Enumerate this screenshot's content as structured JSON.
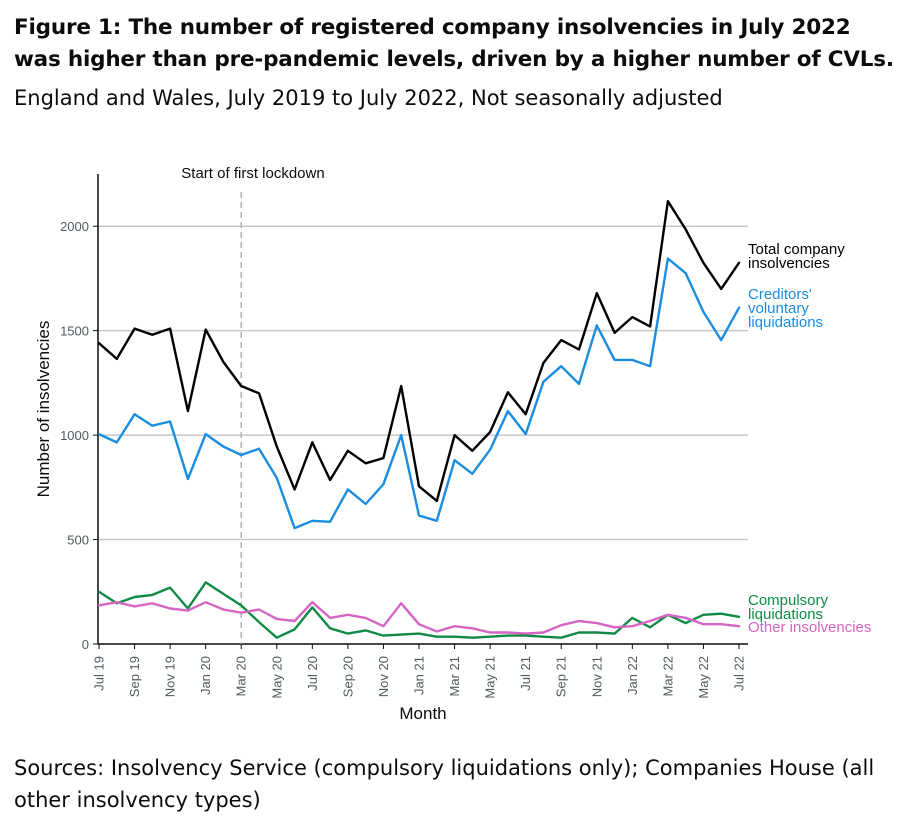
{
  "figure": {
    "title": "Figure 1: The number of registered company insolvencies in July 2022 was higher than pre-pandemic levels, driven by a higher number of CVLs.",
    "subtitle": "England and Wales, July 2019 to July 2022, Not seasonally adjusted",
    "source": "Sources: Insolvency Service (compulsory liquidations only); Companies House (all other insolvency types)"
  },
  "chart_data": {
    "type": "line",
    "xlabel": "Month",
    "ylabel": "Number of insolvencies",
    "ylim": [
      0,
      2250
    ],
    "yticks": [
      0,
      500,
      1000,
      1500,
      2000
    ],
    "grid": "horizontal",
    "x": [
      "Jul 19",
      "Aug 19",
      "Sep 19",
      "Oct 19",
      "Nov 19",
      "Dec 19",
      "Jan 20",
      "Feb 20",
      "Mar 20",
      "Apr 20",
      "May 20",
      "Jun 20",
      "Jul 20",
      "Aug 20",
      "Sep 20",
      "Oct 20",
      "Nov 20",
      "Dec 20",
      "Jan 21",
      "Feb 21",
      "Mar 21",
      "Apr 21",
      "May 21",
      "Jun 21",
      "Jul 21",
      "Aug 21",
      "Sep 21",
      "Oct 21",
      "Nov 21",
      "Dec 21",
      "Jan 22",
      "Feb 22",
      "Mar 22",
      "Apr 22",
      "May 22",
      "Jun 22",
      "Jul 22"
    ],
    "xtick_labels": [
      "Jul 19",
      "Sep 19",
      "Nov 19",
      "Jan 20",
      "Mar 20",
      "May 20",
      "Jul 20",
      "Sep 20",
      "Nov 20",
      "Jan 21",
      "Mar 21",
      "May 21",
      "Jul 21",
      "Sep 21",
      "Nov 21",
      "Jan 22",
      "Mar 22",
      "May 22",
      "Jul 22"
    ],
    "annotation": {
      "text": "Start of first lockdown",
      "x": "Mar 20"
    },
    "series": [
      {
        "name": "Total company insolvencies",
        "color": "#000000",
        "values": [
          1440,
          1365,
          1510,
          1480,
          1510,
          1115,
          1505,
          1350,
          1235,
          1200,
          945,
          740,
          965,
          785,
          925,
          865,
          890,
          1235,
          755,
          685,
          1000,
          925,
          1015,
          1205,
          1100,
          1345,
          1455,
          1410,
          1680,
          1490,
          1565,
          1520,
          2120,
          1985,
          1825,
          1700,
          1825
        ]
      },
      {
        "name": "Creditors' voluntary liquidations",
        "color": "#1a8de0",
        "values": [
          1005,
          965,
          1100,
          1045,
          1065,
          790,
          1005,
          945,
          905,
          935,
          795,
          555,
          590,
          585,
          740,
          670,
          765,
          1000,
          615,
          590,
          880,
          815,
          930,
          1115,
          1005,
          1255,
          1330,
          1245,
          1525,
          1360,
          1360,
          1330,
          1845,
          1775,
          1590,
          1455,
          1610
        ]
      },
      {
        "name": "Compulsory liquidations",
        "color": "#118a46",
        "values": [
          250,
          195,
          225,
          235,
          270,
          170,
          295,
          240,
          185,
          105,
          30,
          70,
          175,
          75,
          50,
          65,
          40,
          45,
          50,
          35,
          35,
          30,
          35,
          40,
          40,
          35,
          30,
          55,
          55,
          50,
          125,
          80,
          140,
          100,
          140,
          145,
          130
        ]
      },
      {
        "name": "Other insolvencies",
        "color": "#d465c3",
        "values": [
          185,
          200,
          180,
          195,
          170,
          160,
          200,
          165,
          150,
          165,
          120,
          110,
          200,
          125,
          140,
          125,
          85,
          195,
          95,
          60,
          85,
          75,
          55,
          55,
          50,
          55,
          90,
          110,
          100,
          80,
          85,
          110,
          140,
          125,
          95,
          95,
          85
        ]
      }
    ],
    "legend_labels": [
      {
        "series": "Total company insolvencies",
        "lines": [
          "Total company",
          "insolvencies"
        ]
      },
      {
        "series": "Creditors' voluntary liquidations",
        "lines": [
          "Creditors'",
          "voluntary",
          "liquidations"
        ]
      },
      {
        "series": "Compulsory liquidations",
        "lines": [
          "Compulsory",
          "liquidations"
        ]
      },
      {
        "series": "Other insolvencies",
        "lines": [
          "Other insolvencies"
        ]
      }
    ]
  }
}
